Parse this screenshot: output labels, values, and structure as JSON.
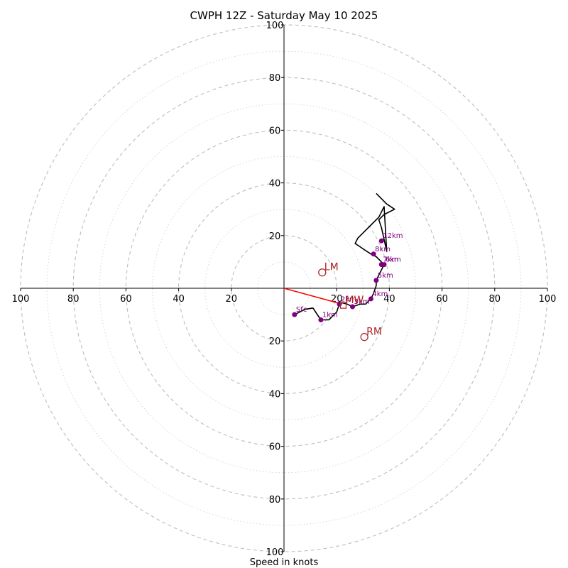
{
  "chart_data": {
    "type": "hodograph",
    "title": "CWPH 12Z - Saturday May 10 2025",
    "xlabel": "Speed in knots",
    "ylabel": "",
    "range": [
      -100,
      100
    ],
    "major_rings": [
      20,
      40,
      60,
      80,
      100
    ],
    "minor_rings": [
      10,
      30,
      50,
      70,
      90
    ],
    "x_ticks": [
      "100",
      "80",
      "60",
      "40",
      "20",
      "20",
      "40",
      "60",
      "80",
      "100"
    ],
    "x_tick_values": [
      -100,
      -80,
      -60,
      -40,
      -20,
      20,
      40,
      60,
      80,
      100
    ],
    "y_ticks": [
      "100",
      "80",
      "60",
      "40",
      "20",
      "20",
      "40",
      "60",
      "80",
      "100"
    ],
    "y_tick_values": [
      100,
      80,
      60,
      40,
      20,
      -20,
      -40,
      -60,
      -80,
      -100
    ],
    "colors": {
      "trace": "#000000",
      "levels": "#800080",
      "motion": "#b22222",
      "shear": "#ff0000",
      "grid": "#bdbdbd"
    },
    "trace": [
      [
        4,
        -10
      ],
      [
        8,
        -8
      ],
      [
        11,
        -7.5
      ],
      [
        13,
        -10.5
      ],
      [
        14,
        -12
      ],
      [
        17,
        -12
      ],
      [
        18,
        -11
      ],
      [
        20,
        -9
      ],
      [
        21,
        -6
      ],
      [
        22,
        -5.5
      ],
      [
        24,
        -6
      ],
      [
        26,
        -7
      ],
      [
        29,
        -6
      ],
      [
        31,
        -6
      ],
      [
        32,
        -5
      ],
      [
        33,
        -4
      ],
      [
        34,
        -2
      ],
      [
        35,
        1
      ],
      [
        35,
        3
      ],
      [
        36,
        5
      ],
      [
        37,
        7
      ],
      [
        38,
        9
      ],
      [
        37,
        10
      ],
      [
        35,
        12
      ],
      [
        33,
        13
      ],
      [
        30,
        15
      ],
      [
        27,
        17
      ],
      [
        28,
        19
      ],
      [
        30,
        21
      ],
      [
        33,
        24
      ],
      [
        36,
        27
      ],
      [
        38,
        31
      ],
      [
        39,
        14
      ],
      [
        37,
        23
      ],
      [
        36,
        26
      ],
      [
        38,
        28
      ],
      [
        40,
        29
      ],
      [
        42,
        30
      ],
      [
        39,
        32
      ],
      [
        35,
        36
      ]
    ],
    "levels": [
      {
        "label": "Sfc",
        "u": 4,
        "v": -10
      },
      {
        "label": "1km",
        "u": 14,
        "v": -12
      },
      {
        "label": "2km",
        "u": 21,
        "v": -6
      },
      {
        "label": "3km",
        "u": 26,
        "v": -7
      },
      {
        "label": "4km",
        "u": 33,
        "v": -4
      },
      {
        "label": "5km",
        "u": 35,
        "v": 3
      },
      {
        "label": "6km",
        "u": 38,
        "v": 9
      },
      {
        "label": "7km",
        "u": 37,
        "v": 9
      },
      {
        "label": "8km",
        "u": 34,
        "v": 13
      },
      {
        "label": "12km",
        "u": 37,
        "v": 18
      }
    ],
    "storm_motion": [
      {
        "label": "LM",
        "u": 14.5,
        "v": 6
      },
      {
        "label": "MW",
        "u": 22.5,
        "v": -6.5,
        "marker": "square"
      },
      {
        "label": "RM",
        "u": 30.5,
        "v": -18.5
      }
    ],
    "shear_vector": {
      "from": [
        0,
        0
      ],
      "to": [
        22,
        -6
      ]
    }
  }
}
